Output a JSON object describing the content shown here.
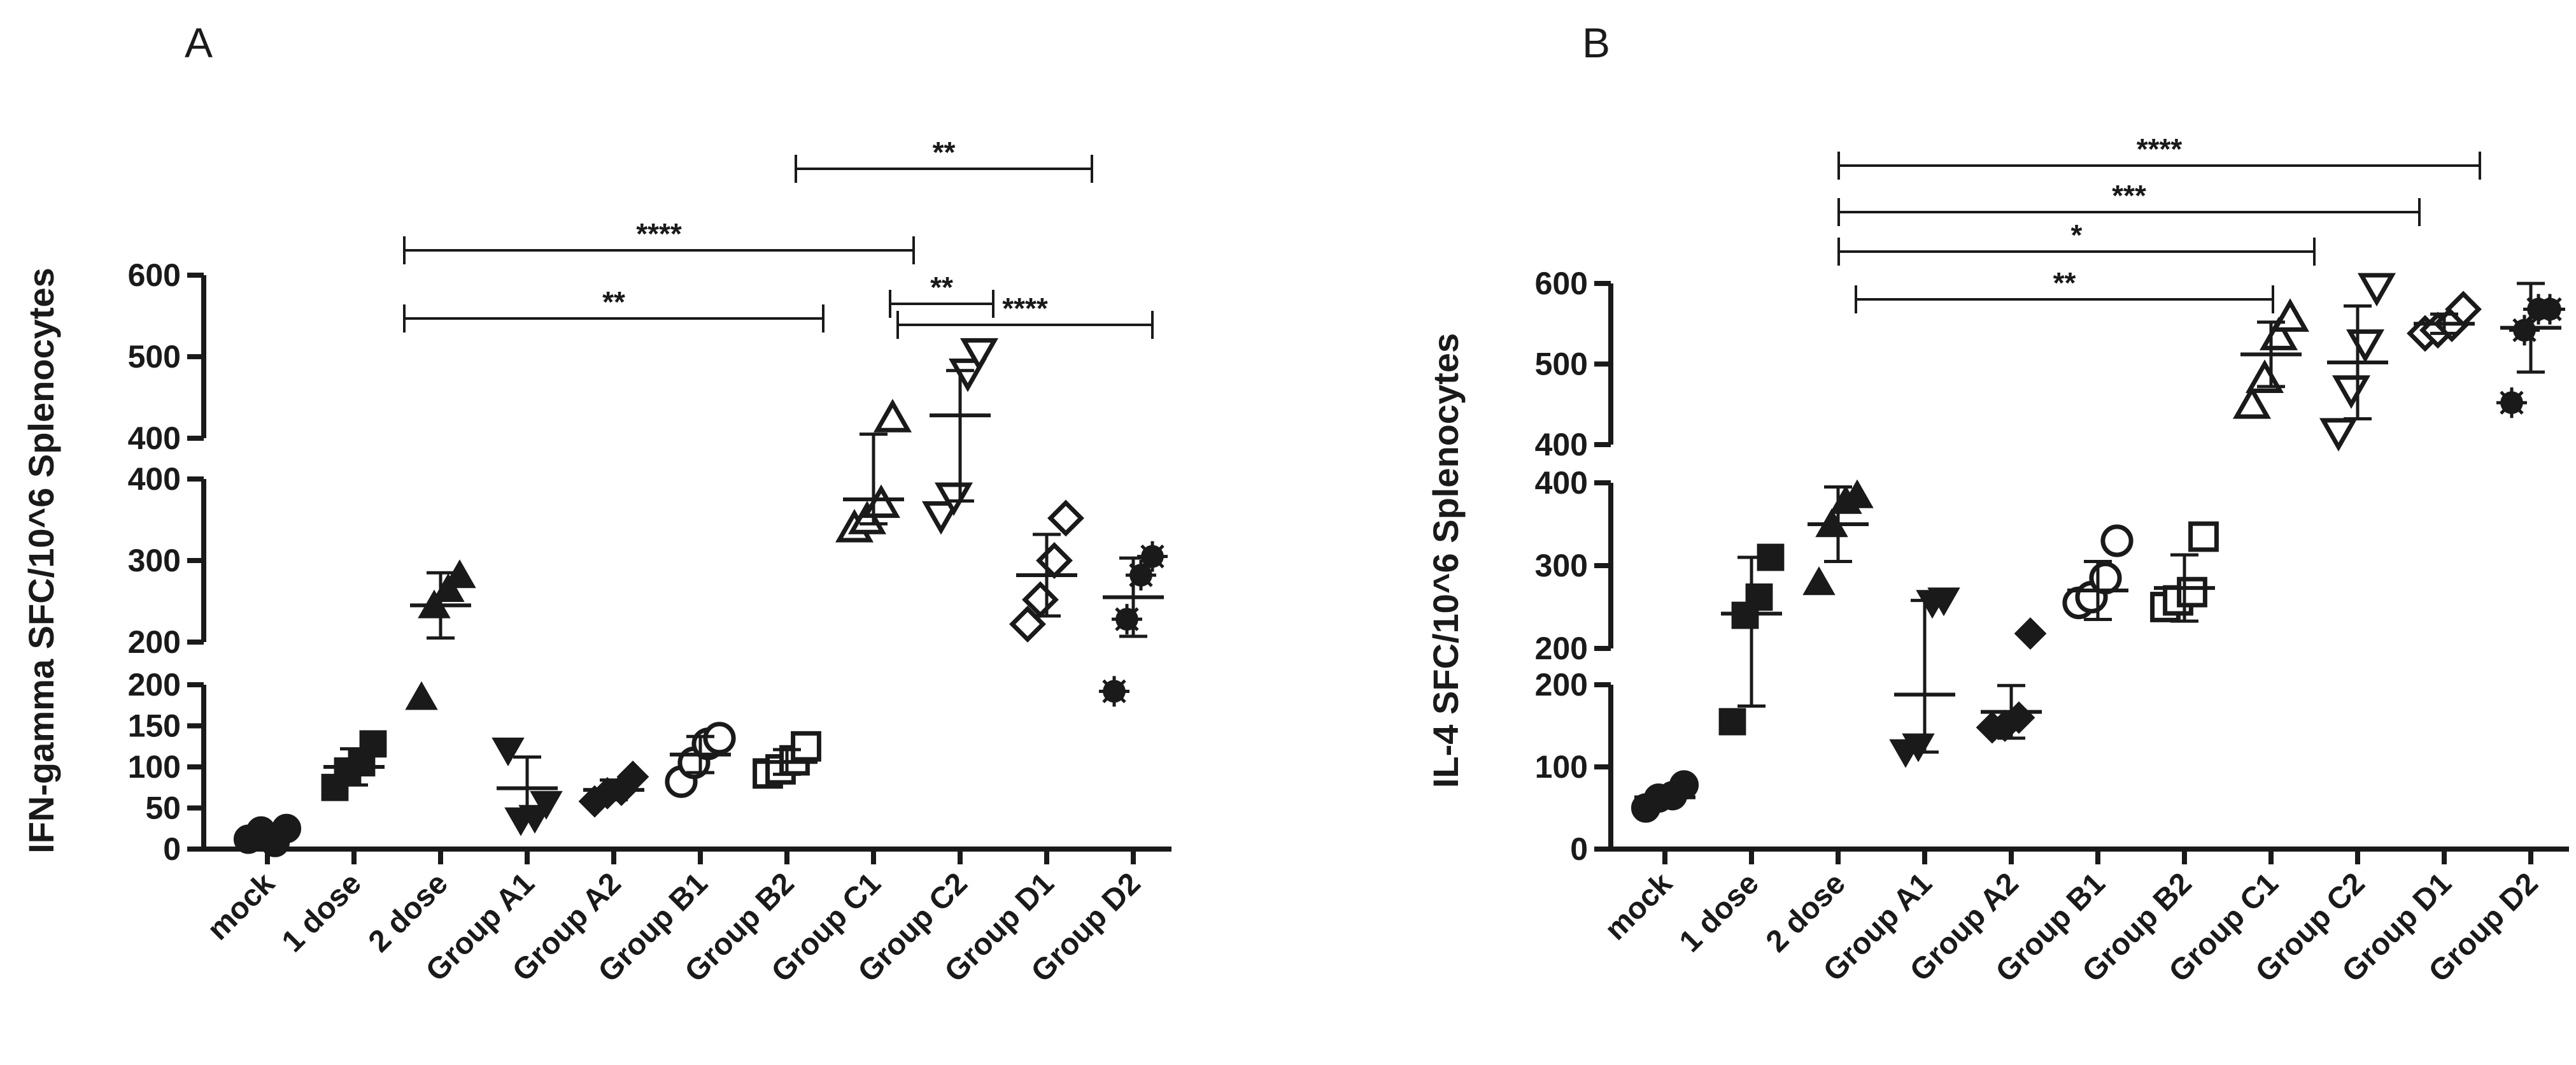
{
  "figure": {
    "background": "#ffffff",
    "ink": "#1a1a1a"
  },
  "chart_data": [
    {
      "panel": "A",
      "type": "scatter",
      "title": "",
      "ylabel": "IFN-gamma SFC/10^6 Splenocytes",
      "xlabel": "",
      "categories": [
        "mock",
        "1 dose",
        "2 dose",
        "Group A1",
        "Group A2",
        "Group B1",
        "Group B2",
        "Group C1",
        "Group C2",
        "Group D1",
        "Group D2"
      ],
      "markers": [
        "circle-filled",
        "square-filled",
        "triangle-filled",
        "triangle-down-filled",
        "diamond-filled",
        "circle-open",
        "square-open",
        "triangle-open",
        "triangle-down-open",
        "diamond-open",
        "asterisk-filled"
      ],
      "segments": [
        {
          "range": [
            0,
            200
          ],
          "ticks": [
            0,
            50,
            100,
            150,
            200
          ],
          "tick_labels": [
            "0",
            "50",
            "100",
            "150",
            "200"
          ]
        },
        {
          "range": [
            200,
            400
          ],
          "ticks": [
            200,
            300,
            400
          ],
          "tick_labels": [
            "200",
            "300",
            "400"
          ]
        },
        {
          "range": [
            400,
            600
          ],
          "ticks": [
            400,
            500,
            600
          ],
          "tick_labels": [
            "400",
            "500",
            "600"
          ]
        }
      ],
      "points": [
        [
          12,
          22,
          8,
          25
        ],
        [
          75,
          95,
          105,
          128
        ],
        [
          185,
          245,
          265,
          282
        ],
        [
          120,
          35,
          38,
          55
        ],
        [
          58,
          68,
          72,
          88
        ],
        [
          82,
          105,
          128,
          135
        ],
        [
          92,
          97,
          108,
          125
        ],
        [
          340,
          350,
          370,
          425
        ],
        [
          355,
          378,
          480,
          505
        ],
        [
          222,
          252,
          300,
          352
        ],
        [
          192,
          228,
          282,
          305
        ]
      ],
      "mean": [
        18,
        100,
        245,
        74,
        72,
        115,
        106,
        375,
        428,
        282,
        255
      ],
      "sd": [
        7,
        22,
        40,
        38,
        12,
        22,
        15,
        30,
        55,
        50,
        48
      ],
      "significance": [
        {
          "from": "2 dose",
          "to": "Group C1",
          "label": "**"
        },
        {
          "from": "2 dose",
          "to": "Group C2",
          "label": "****"
        },
        {
          "from": "Group C1",
          "to": "Group D1",
          "label": "**"
        },
        {
          "from": "Group C2",
          "to": "Group D1",
          "label": "**"
        },
        {
          "from": "Group C2",
          "to": "Group D2",
          "label": "****"
        }
      ]
    },
    {
      "panel": "B",
      "type": "scatter",
      "title": "",
      "ylabel": "IL-4 SFC/10^6 Splenocytes",
      "xlabel": "",
      "categories": [
        "mock",
        "1 dose",
        "2 dose",
        "Group A1",
        "Group A2",
        "Group B1",
        "Group B2",
        "Group C1",
        "Group C2",
        "Group D1",
        "Group D2"
      ],
      "markers": [
        "circle-filled",
        "square-filled",
        "triangle-filled",
        "triangle-down-filled",
        "diamond-filled",
        "circle-open",
        "square-open",
        "triangle-open",
        "triangle-down-open",
        "diamond-open",
        "asterisk-filled"
      ],
      "segments": [
        {
          "range": [
            0,
            200
          ],
          "ticks": [
            0,
            100,
            200
          ],
          "tick_labels": [
            "0",
            "100",
            "200"
          ]
        },
        {
          "range": [
            200,
            400
          ],
          "ticks": [
            200,
            300,
            400
          ],
          "tick_labels": [
            "200",
            "300",
            "400"
          ]
        },
        {
          "range": [
            400,
            600
          ],
          "ticks": [
            400,
            500,
            600
          ],
          "tick_labels": [
            "400",
            "500",
            "600"
          ]
        }
      ],
      "points": [
        [
          50,
          62,
          65,
          78
        ],
        [
          155,
          240,
          262,
          310
        ],
        [
          280,
          350,
          378,
          385
        ],
        [
          118,
          125,
          255,
          258
        ],
        [
          148,
          150,
          160,
          218
        ],
        [
          255,
          262,
          285,
          330
        ],
        [
          250,
          258,
          268,
          335
        ],
        [
          450,
          482,
          535,
          558
        ],
        [
          415,
          468,
          525,
          595
        ],
        [
          538,
          542,
          550,
          568
        ],
        [
          452,
          542,
          568,
          568
        ]
      ],
      "mean": [
        63,
        242,
        350,
        188,
        167,
        270,
        273,
        512,
        502,
        550,
        545
      ],
      "sd": [
        10,
        68,
        45,
        70,
        32,
        35,
        40,
        40,
        70,
        12,
        55
      ],
      "significance": [
        {
          "from": "2 dose",
          "to": "Group C1",
          "label": "**"
        },
        {
          "from": "2 dose",
          "to": "Group C2",
          "label": "*"
        },
        {
          "from": "2 dose",
          "to": "Group D1",
          "label": "***"
        },
        {
          "from": "2 dose",
          "to": "Group D2",
          "label": "****"
        }
      ]
    }
  ]
}
